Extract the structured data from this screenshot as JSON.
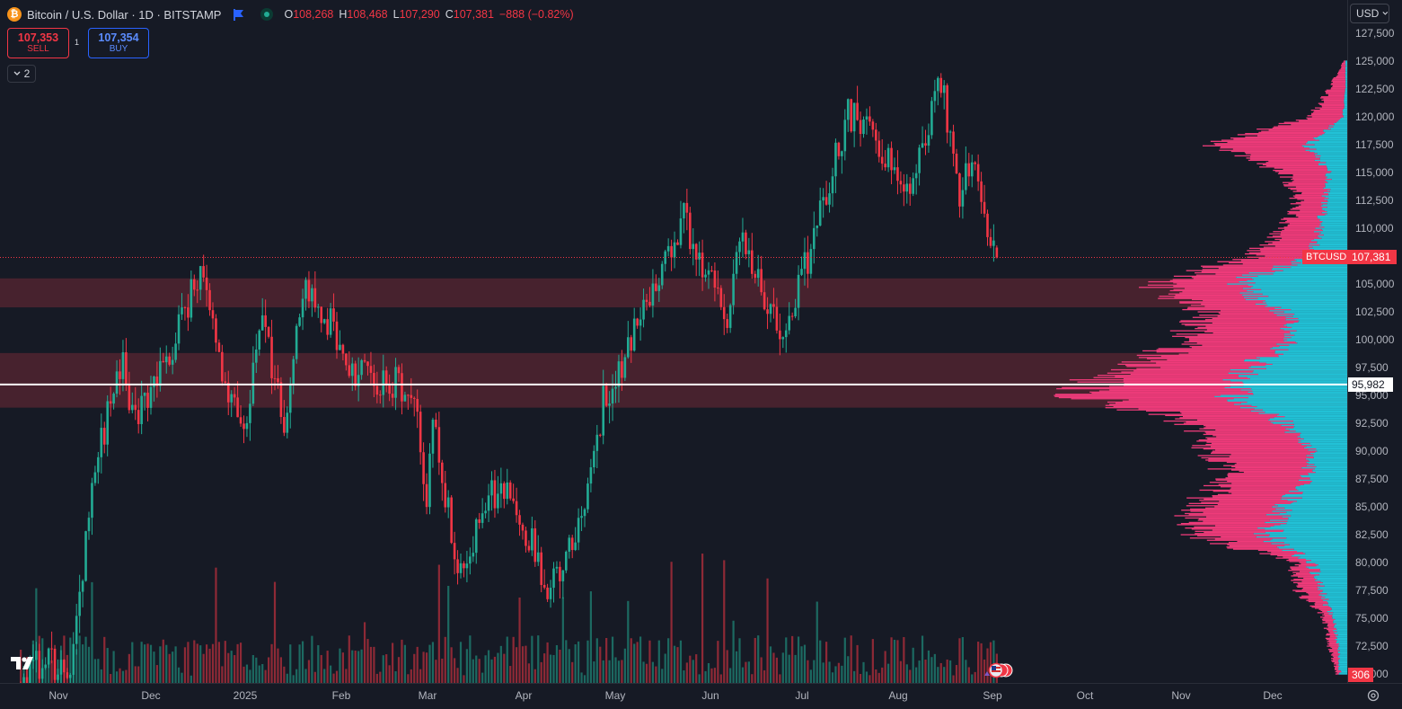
{
  "legend": {
    "symbol_title": "Bitcoin / U.S. Dollar · 1D · BITSTAMP",
    "coin_glyph": "₿",
    "ohlc": [
      {
        "k": "O",
        "v": "108,268"
      },
      {
        "k": "H",
        "v": "108,468"
      },
      {
        "k": "L",
        "v": "107,290"
      },
      {
        "k": "C",
        "v": "107,381"
      },
      {
        "k": "",
        "v": "−888 (−0.82%)"
      }
    ]
  },
  "trade": {
    "sell_price": "107,353",
    "sell_label": "SELL",
    "spread": "1",
    "buy_price": "107,354",
    "buy_label": "BUY"
  },
  "indicators_toggle": {
    "count": "2"
  },
  "currency": "USD",
  "price_axis": {
    "ticks": [
      "127,500",
      "125,000",
      "122,500",
      "120,000",
      "117,500",
      "115,000",
      "112,500",
      "110,000",
      "107,500",
      "105,000",
      "102,500",
      "100,000",
      "97,500",
      "95,000",
      "92,500",
      "90,000",
      "87,500",
      "85,000",
      "82,500",
      "80,000",
      "77,500",
      "75,000",
      "72,500",
      "70,000"
    ],
    "last_price_label": "107,381",
    "symbol_label": "BTCUSD",
    "crosshair_label": "95,982",
    "volume_label": "306"
  },
  "time_axis": {
    "labels": [
      "Nov",
      "Dec",
      "2025",
      "Feb",
      "Mar",
      "Apr",
      "May",
      "Jun",
      "Jul",
      "Aug",
      "Sep",
      "Oct",
      "Nov",
      "Dec"
    ]
  },
  "colors": {
    "background": "#161a25",
    "up": "#22ab94",
    "down": "#f23645",
    "profile_up": "#22c1d6",
    "profile_down": "#ee3b7a",
    "zone": "#4c2330"
  },
  "icons": {
    "flag": "flag-icon",
    "status": "market-open-icon",
    "settings": "settings-gear-icon",
    "logo": "tradingview-logo-icon",
    "events": "economic-events-icon"
  },
  "chart_data": {
    "type": "candlestick",
    "symbol": "BTCUSD",
    "interval": "1D",
    "zones": [
      {
        "from": 102900,
        "to": 105500
      },
      {
        "from": 93900,
        "to": 98800
      }
    ],
    "crosshair_price": 95982,
    "last_price": 107381,
    "ylim": [
      70000,
      128000
    ],
    "monthly_path": [
      {
        "date": "2024-10-20",
        "price": 68500
      },
      {
        "date": "2024-10-28",
        "price": 72000
      },
      {
        "date": "2024-11-05",
        "price": 69000
      },
      {
        "date": "2024-11-12",
        "price": 88000
      },
      {
        "date": "2024-11-22",
        "price": 98000
      },
      {
        "date": "2024-11-26",
        "price": 92500
      },
      {
        "date": "2024-12-05",
        "price": 97500
      },
      {
        "date": "2024-12-17",
        "price": 106500
      },
      {
        "date": "2024-12-26",
        "price": 94500
      },
      {
        "date": "2024-12-31",
        "price": 92500
      },
      {
        "date": "2025-01-06",
        "price": 101500
      },
      {
        "date": "2025-01-13",
        "price": 92500
      },
      {
        "date": "2025-01-20",
        "price": 105500
      },
      {
        "date": "2025-01-27",
        "price": 102000
      },
      {
        "date": "2025-02-05",
        "price": 97000
      },
      {
        "date": "2025-02-24",
        "price": 95500
      },
      {
        "date": "2025-02-28",
        "price": 84500
      },
      {
        "date": "2025-03-02",
        "price": 93500
      },
      {
        "date": "2025-03-10",
        "price": 79500
      },
      {
        "date": "2025-03-24",
        "price": 87500
      },
      {
        "date": "2025-04-02",
        "price": 82500
      },
      {
        "date": "2025-04-08",
        "price": 77000
      },
      {
        "date": "2025-04-20",
        "price": 85000
      },
      {
        "date": "2025-04-26",
        "price": 94500
      },
      {
        "date": "2025-05-01",
        "price": 96500
      },
      {
        "date": "2025-05-10",
        "price": 103500
      },
      {
        "date": "2025-05-22",
        "price": 111000
      },
      {
        "date": "2025-06-05",
        "price": 101500
      },
      {
        "date": "2025-06-10",
        "price": 109500
      },
      {
        "date": "2025-06-22",
        "price": 100500
      },
      {
        "date": "2025-07-03",
        "price": 109000
      },
      {
        "date": "2025-07-14",
        "price": 120500
      },
      {
        "date": "2025-07-31",
        "price": 115500
      },
      {
        "date": "2025-08-02",
        "price": 113000
      },
      {
        "date": "2025-08-13",
        "price": 123500
      },
      {
        "date": "2025-08-19",
        "price": 113000
      },
      {
        "date": "2025-08-23",
        "price": 115500
      },
      {
        "date": "2025-08-31",
        "price": 107381
      }
    ]
  }
}
